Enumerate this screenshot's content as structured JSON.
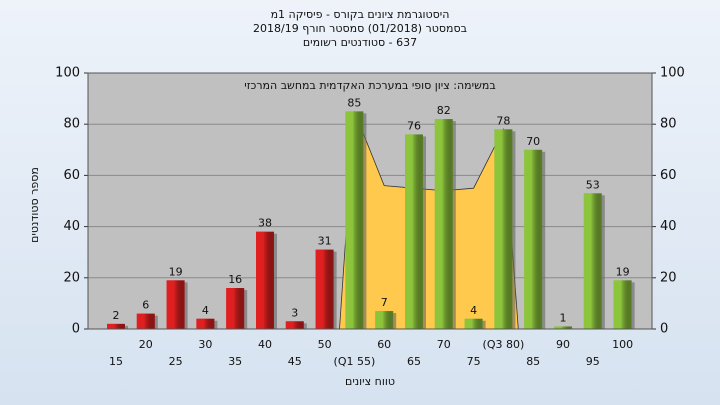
{
  "chart_data": {
    "type": "bar",
    "title": "היסטוגרמת ציונים בקורס - פיסיקה 1מ",
    "subtitle": "בסמסטר (01/2018) סמסטר חורף 2018/19",
    "subtitle2": "637 - סטודנטים רשומים",
    "annotation": "במשימה: ציון סופי במערכת האקדמית במחשב המרכזי",
    "y_label": "מספר סטודנטים",
    "x_label": "טווח ציונים",
    "categories": [
      "15",
      "20",
      "25",
      "30",
      "35",
      "40",
      "45",
      "50",
      "(Q1 55)",
      "60",
      "65",
      "70",
      "75",
      "(Q3 80)",
      "85",
      "90",
      "95",
      "100"
    ],
    "values": [
      2,
      6,
      19,
      4,
      16,
      38,
      3,
      31,
      85,
      7,
      76,
      82,
      4,
      78,
      70,
      1,
      53,
      19
    ],
    "bar_colors": [
      "#e02020",
      "#e02020",
      "#e02020",
      "#e02020",
      "#e02020",
      "#e02020",
      "#e02020",
      "#e02020",
      "#8cc43c",
      "#8cc43c",
      "#8cc43c",
      "#8cc43c",
      "#8cc43c",
      "#8cc43c",
      "#8cc43c",
      "#8cc43c",
      "#8cc43c",
      "#8cc43c"
    ],
    "area": {
      "color": "#ffc94d",
      "values": [
        null,
        null,
        null,
        null,
        null,
        null,
        null,
        null,
        85,
        56,
        55,
        54,
        55,
        78,
        null,
        null,
        null,
        null
      ]
    },
    "ylim": [
      0,
      100
    ],
    "yticks": [
      0,
      20,
      40,
      60,
      80,
      100
    ],
    "grid": true
  }
}
